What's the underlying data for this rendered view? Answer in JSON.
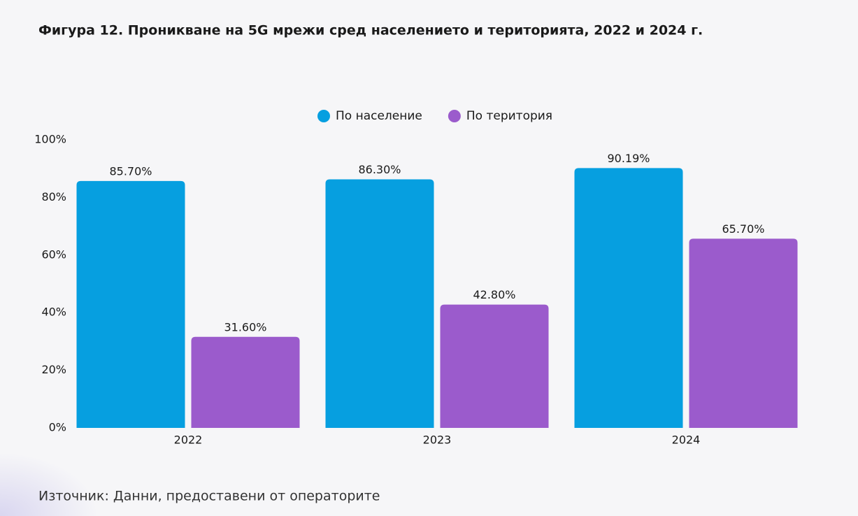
{
  "chart_data": {
    "type": "bar",
    "title": "Фигура 12. Проникване на 5G мрежи сред населението и територията, 2022 и 2024 г.",
    "source": "Източник: Данни, предоставени от операторите",
    "categories": [
      "2022",
      "2023",
      "2024"
    ],
    "series": [
      {
        "name": "По население",
        "color": "#069fe0",
        "values": [
          85.7,
          86.3,
          90.19
        ],
        "value_labels": [
          "85.70%",
          "86.30%",
          "90.19%"
        ]
      },
      {
        "name": "По територия",
        "color": "#9b5bcc",
        "values": [
          31.6,
          42.8,
          65.7
        ],
        "value_labels": [
          "31.60%",
          "42.80%",
          "65.70%"
        ]
      }
    ],
    "ylim": [
      0,
      100
    ],
    "yticks": [
      {
        "value": 0,
        "label": "0%"
      },
      {
        "value": 20,
        "label": "20%"
      },
      {
        "value": 40,
        "label": "40%"
      },
      {
        "value": 60,
        "label": "60%"
      },
      {
        "value": 80,
        "label": "80%"
      },
      {
        "value": 100,
        "label": "100%"
      }
    ],
    "grid": false
  }
}
